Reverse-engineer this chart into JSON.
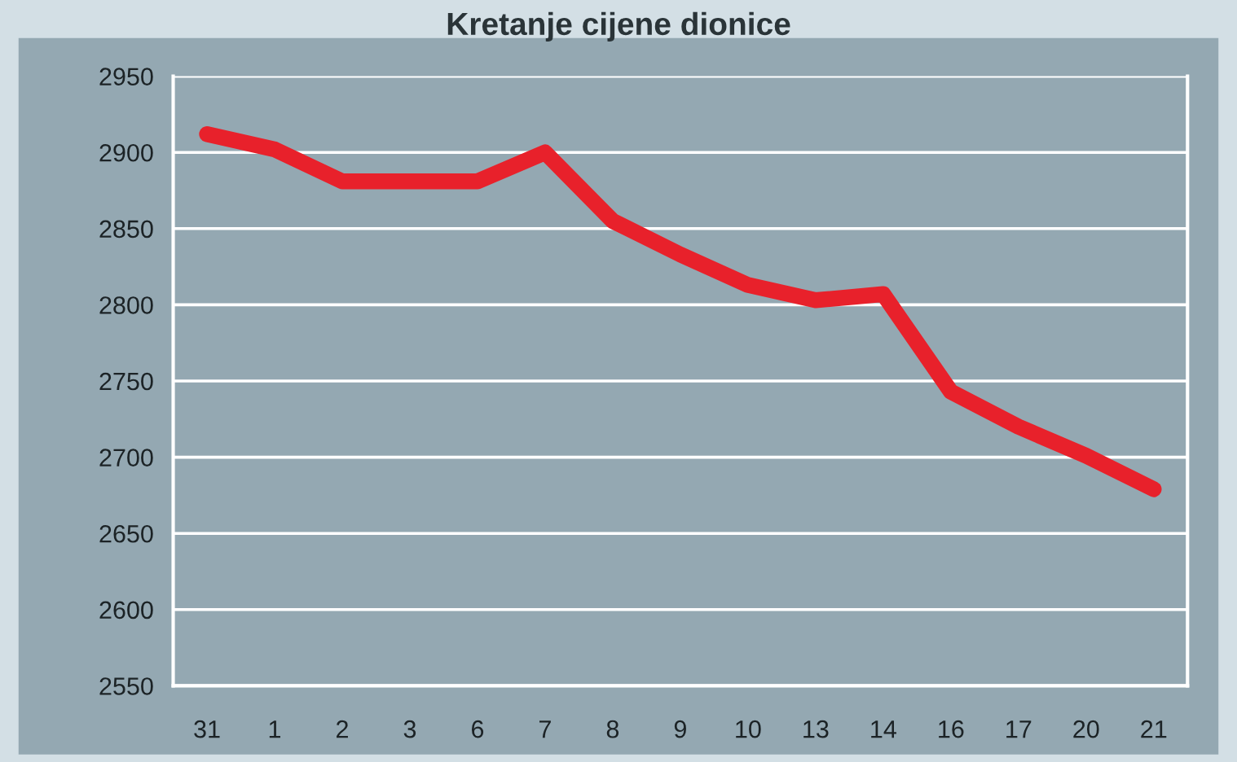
{
  "chart_data": {
    "type": "line",
    "title": "Kretanje cijene dionice",
    "categories": [
      "31",
      "1",
      "2",
      "3",
      "6",
      "7",
      "8",
      "9",
      "10",
      "13",
      "14",
      "16",
      "17",
      "20",
      "21"
    ],
    "series": [
      {
        "color": "#e8212b",
        "values": [
          2912,
          2902,
          2881,
          2881,
          2881,
          2900,
          2855,
          2833,
          2813,
          2803,
          2807,
          2743,
          2720,
          2701,
          2679
        ]
      }
    ],
    "ylim": [
      2550,
      2950
    ],
    "yticks": [
      2550,
      2600,
      2650,
      2700,
      2750,
      2800,
      2850,
      2900,
      2950
    ],
    "grid": "y",
    "marker": "none",
    "line_style": "solid"
  }
}
